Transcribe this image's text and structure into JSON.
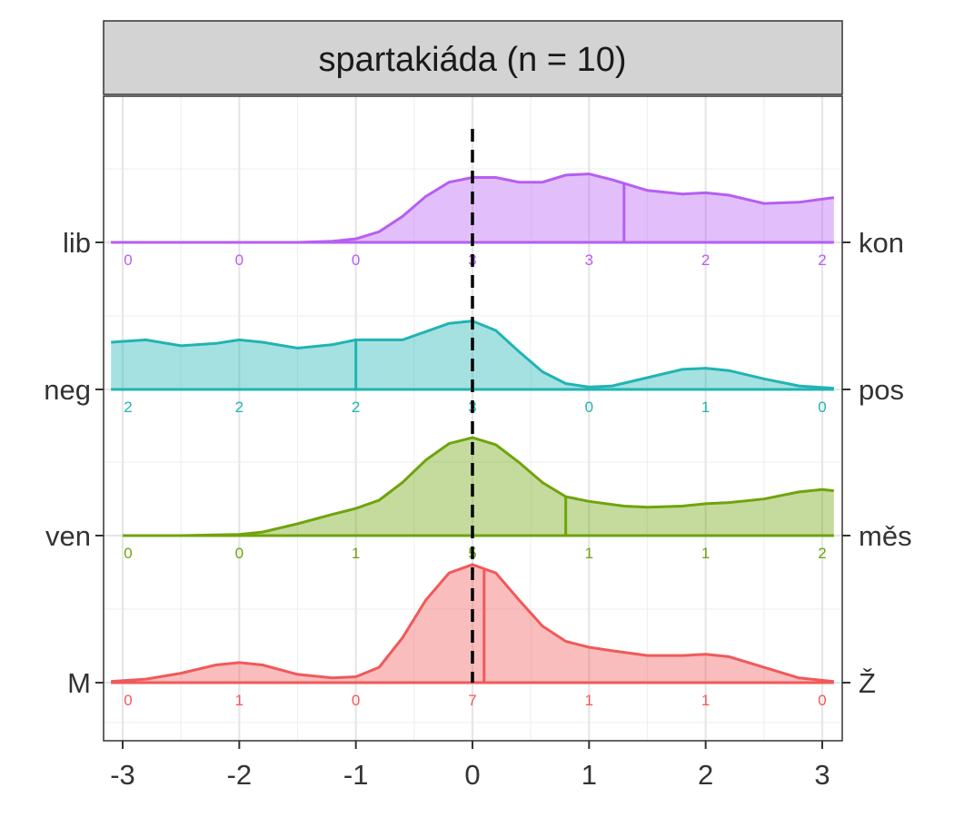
{
  "chart_data": {
    "type": "ridgeline",
    "title": "spartakiáda (n = 10)",
    "x_ticks": [
      "-3",
      "-2",
      "-1",
      "0",
      "1",
      "2",
      "3"
    ],
    "xlim": [
      -3.12,
      3.12
    ],
    "reference_line_x": 0,
    "series": [
      {
        "left_label": "M",
        "right_label": "Ž",
        "color": "#f0595a",
        "mean_x": 0.1,
        "counts": [
          {
            "x": -3,
            "label": "0"
          },
          {
            "x": -2,
            "label": "1"
          },
          {
            "x": -1,
            "label": "0"
          },
          {
            "x": 0,
            "label": "7"
          },
          {
            "x": 1,
            "label": "1"
          },
          {
            "x": 2,
            "label": "1"
          },
          {
            "x": 3,
            "label": "0"
          }
        ],
        "density": [
          [
            -3.1,
            0.01
          ],
          [
            -2.8,
            0.03
          ],
          [
            -2.5,
            0.08
          ],
          [
            -2.2,
            0.15
          ],
          [
            -2.0,
            0.17
          ],
          [
            -1.8,
            0.15
          ],
          [
            -1.5,
            0.07
          ],
          [
            -1.2,
            0.04
          ],
          [
            -1.0,
            0.05
          ],
          [
            -0.8,
            0.13
          ],
          [
            -0.6,
            0.38
          ],
          [
            -0.4,
            0.7
          ],
          [
            -0.2,
            0.93
          ],
          [
            0.0,
            1.0
          ],
          [
            0.2,
            0.93
          ],
          [
            0.4,
            0.7
          ],
          [
            0.6,
            0.48
          ],
          [
            0.8,
            0.35
          ],
          [
            1.0,
            0.3
          ],
          [
            1.2,
            0.27
          ],
          [
            1.5,
            0.23
          ],
          [
            1.8,
            0.23
          ],
          [
            2.0,
            0.24
          ],
          [
            2.2,
            0.22
          ],
          [
            2.5,
            0.13
          ],
          [
            2.8,
            0.04
          ],
          [
            3.1,
            0.01
          ]
        ]
      },
      {
        "left_label": "ven",
        "right_label": "měs",
        "color": "#6fa40c",
        "mean_x": 0.8,
        "counts": [
          {
            "x": -3,
            "label": "0"
          },
          {
            "x": -2,
            "label": "0"
          },
          {
            "x": -1,
            "label": "1"
          },
          {
            "x": 0,
            "label": "5"
          },
          {
            "x": 1,
            "label": "1"
          },
          {
            "x": 2,
            "label": "1"
          },
          {
            "x": 3,
            "label": "2"
          }
        ],
        "density": [
          [
            -3.0,
            0.0
          ],
          [
            -2.5,
            0.0
          ],
          [
            -2.0,
            0.01
          ],
          [
            -1.8,
            0.03
          ],
          [
            -1.5,
            0.1
          ],
          [
            -1.2,
            0.18
          ],
          [
            -1.0,
            0.23
          ],
          [
            -0.8,
            0.3
          ],
          [
            -0.6,
            0.45
          ],
          [
            -0.4,
            0.64
          ],
          [
            -0.2,
            0.78
          ],
          [
            0.0,
            0.83
          ],
          [
            0.2,
            0.77
          ],
          [
            0.4,
            0.62
          ],
          [
            0.6,
            0.45
          ],
          [
            0.8,
            0.33
          ],
          [
            1.0,
            0.29
          ],
          [
            1.3,
            0.25
          ],
          [
            1.5,
            0.24
          ],
          [
            1.8,
            0.25
          ],
          [
            2.0,
            0.27
          ],
          [
            2.2,
            0.28
          ],
          [
            2.5,
            0.31
          ],
          [
            2.8,
            0.37
          ],
          [
            3.0,
            0.39
          ],
          [
            3.1,
            0.38
          ]
        ]
      },
      {
        "left_label": "neg",
        "right_label": "pos",
        "color": "#20b4b3",
        "mean_x": -1.0,
        "counts": [
          {
            "x": -3,
            "label": "2"
          },
          {
            "x": -2,
            "label": "2"
          },
          {
            "x": -1,
            "label": "2"
          },
          {
            "x": 0,
            "label": "3"
          },
          {
            "x": 1,
            "label": "0"
          },
          {
            "x": 2,
            "label": "1"
          },
          {
            "x": 3,
            "label": "0"
          }
        ],
        "density": [
          [
            -3.1,
            0.4
          ],
          [
            -2.8,
            0.42
          ],
          [
            -2.5,
            0.37
          ],
          [
            -2.2,
            0.39
          ],
          [
            -2.0,
            0.42
          ],
          [
            -1.8,
            0.4
          ],
          [
            -1.5,
            0.35
          ],
          [
            -1.2,
            0.38
          ],
          [
            -1.0,
            0.42
          ],
          [
            -0.8,
            0.42
          ],
          [
            -0.6,
            0.42
          ],
          [
            -0.4,
            0.49
          ],
          [
            -0.2,
            0.56
          ],
          [
            0.0,
            0.58
          ],
          [
            0.2,
            0.5
          ],
          [
            0.4,
            0.32
          ],
          [
            0.6,
            0.15
          ],
          [
            0.8,
            0.05
          ],
          [
            1.0,
            0.02
          ],
          [
            1.2,
            0.03
          ],
          [
            1.5,
            0.1
          ],
          [
            1.8,
            0.17
          ],
          [
            2.0,
            0.18
          ],
          [
            2.2,
            0.16
          ],
          [
            2.5,
            0.09
          ],
          [
            2.8,
            0.03
          ],
          [
            3.1,
            0.01
          ]
        ]
      },
      {
        "left_label": "lib",
        "right_label": "kon",
        "color": "#b75ef2",
        "mean_x": 1.3,
        "counts": [
          {
            "x": -3,
            "label": "0"
          },
          {
            "x": -2,
            "label": "0"
          },
          {
            "x": -1,
            "label": "0"
          },
          {
            "x": 0,
            "label": "3"
          },
          {
            "x": 1,
            "label": "3"
          },
          {
            "x": 2,
            "label": "2"
          },
          {
            "x": 3,
            "label": "2"
          }
        ],
        "density": [
          [
            -3.1,
            0.0
          ],
          [
            -2.0,
            0.0
          ],
          [
            -1.5,
            0.0
          ],
          [
            -1.2,
            0.01
          ],
          [
            -1.0,
            0.03
          ],
          [
            -0.8,
            0.09
          ],
          [
            -0.6,
            0.22
          ],
          [
            -0.4,
            0.39
          ],
          [
            -0.2,
            0.51
          ],
          [
            0.0,
            0.55
          ],
          [
            0.2,
            0.55
          ],
          [
            0.4,
            0.51
          ],
          [
            0.6,
            0.51
          ],
          [
            0.8,
            0.57
          ],
          [
            1.0,
            0.58
          ],
          [
            1.2,
            0.53
          ],
          [
            1.5,
            0.44
          ],
          [
            1.8,
            0.41
          ],
          [
            2.0,
            0.42
          ],
          [
            2.2,
            0.4
          ],
          [
            2.5,
            0.33
          ],
          [
            2.8,
            0.34
          ],
          [
            3.1,
            0.38
          ]
        ]
      }
    ]
  }
}
